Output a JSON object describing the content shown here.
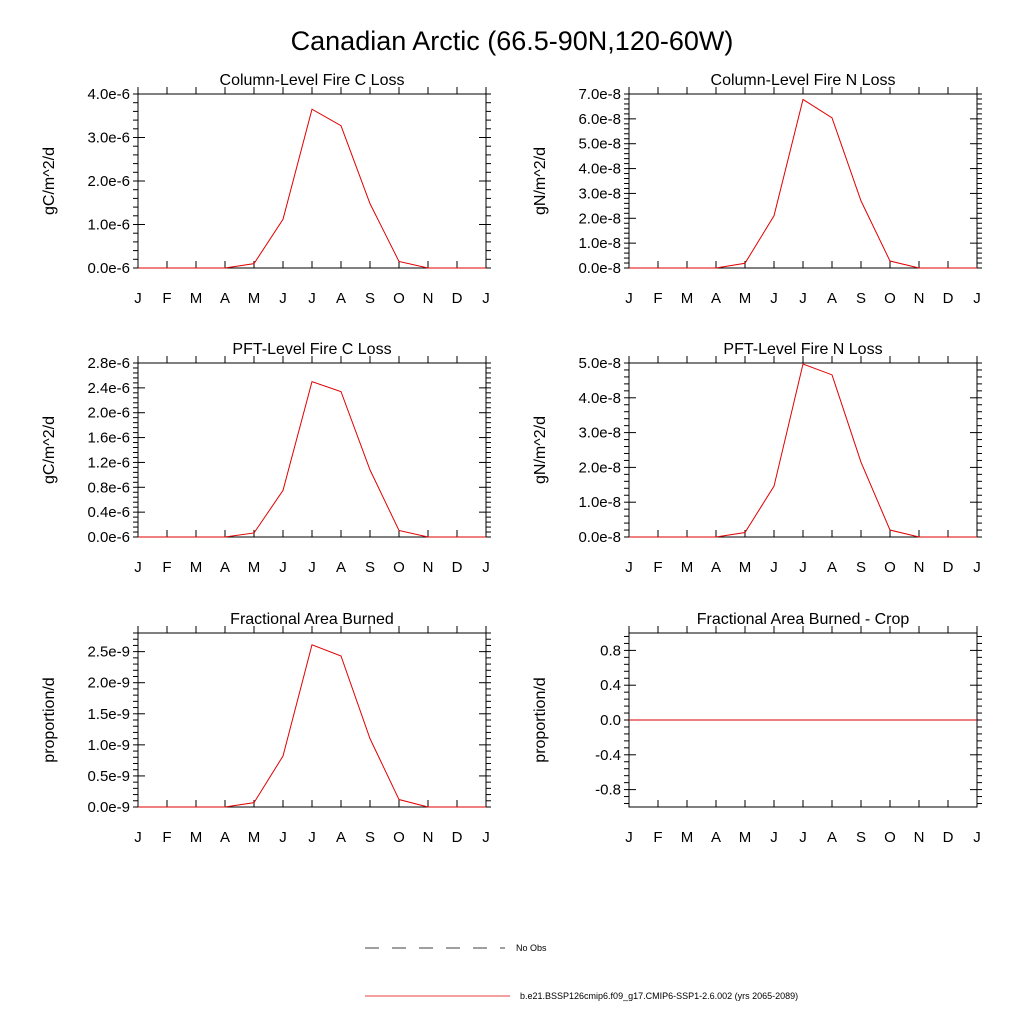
{
  "figure": {
    "title": "Canadian Arctic (66.5-90N,120-60W)"
  },
  "legend": {
    "entries": [
      {
        "label": "No Obs",
        "style": "dashed",
        "color": "#000000"
      },
      {
        "label": "b.e21.BSSP126cmip6.f09_g17.CMIP6-SSP1-2.6.002 (yrs 2065-2089)",
        "style": "solid",
        "color": "#e00000"
      }
    ]
  },
  "chart_data": [
    {
      "type": "line",
      "title": "Column-Level Fire C Loss",
      "ylabel": "gC/m^2/d",
      "categories": [
        "J",
        "F",
        "M",
        "A",
        "M",
        "J",
        "J",
        "A",
        "S",
        "O",
        "N",
        "D",
        "J"
      ],
      "ylim": [
        0,
        4e-06
      ],
      "yticks": [
        0,
        1e-06,
        2e-06,
        3e-06,
        4e-06
      ],
      "yticklabels": [
        "0.0e-6",
        "1.0e-6",
        "2.0e-6",
        "3.0e-6",
        "4.0e-6"
      ],
      "series": [
        {
          "color": "#e00000",
          "values": [
            0,
            0,
            0,
            0,
            1e-07,
            1.12e-06,
            3.65e-06,
            3.27e-06,
            1.48e-06,
            1.5e-07,
            0,
            0,
            0
          ]
        }
      ]
    },
    {
      "type": "line",
      "title": "Column-Level Fire N Loss",
      "ylabel": "gN/m^2/d",
      "categories": [
        "J",
        "F",
        "M",
        "A",
        "M",
        "J",
        "J",
        "A",
        "S",
        "O",
        "N",
        "D",
        "J"
      ],
      "ylim": [
        0,
        7e-08
      ],
      "yticks": [
        0,
        1e-08,
        2e-08,
        3e-08,
        4e-08,
        5e-08,
        6e-08,
        7e-08
      ],
      "yticklabels": [
        "0.0e-8",
        "1.0e-8",
        "2.0e-8",
        "3.0e-8",
        "4.0e-8",
        "5.0e-8",
        "6.0e-8",
        "7.0e-8"
      ],
      "series": [
        {
          "color": "#e00000",
          "values": [
            0,
            0,
            0,
            0,
            1.9e-09,
            2.1e-08,
            6.78e-08,
            6.04e-08,
            2.7e-08,
            2.8e-09,
            0,
            0,
            0
          ]
        }
      ]
    },
    {
      "type": "line",
      "title": "PFT-Level Fire C Loss",
      "ylabel": "gC/m^2/d",
      "categories": [
        "J",
        "F",
        "M",
        "A",
        "M",
        "J",
        "J",
        "A",
        "S",
        "O",
        "N",
        "D",
        "J"
      ],
      "ylim": [
        0,
        2.8e-06
      ],
      "yticks": [
        0,
        4e-07,
        8e-07,
        1.2e-06,
        1.6e-06,
        2e-06,
        2.4e-06,
        2.8e-06
      ],
      "yticklabels": [
        "0.0e-6",
        "0.4e-6",
        "0.8e-6",
        "1.2e-6",
        "1.6e-6",
        "2.0e-6",
        "2.4e-6",
        "2.8e-6"
      ],
      "series": [
        {
          "color": "#e00000",
          "values": [
            0,
            0,
            0,
            0,
            6.5e-08,
            7.5e-07,
            2.5e-06,
            2.34e-06,
            1.08e-06,
            1.05e-07,
            0,
            0,
            0
          ]
        }
      ]
    },
    {
      "type": "line",
      "title": "PFT-Level Fire N Loss",
      "ylabel": "gN/m^2/d",
      "categories": [
        "J",
        "F",
        "M",
        "A",
        "M",
        "J",
        "J",
        "A",
        "S",
        "O",
        "N",
        "D",
        "J"
      ],
      "ylim": [
        0,
        5e-08
      ],
      "yticks": [
        0,
        1e-08,
        2e-08,
        3e-08,
        4e-08,
        5e-08
      ],
      "yticklabels": [
        "0.0e-8",
        "1.0e-8",
        "2.0e-8",
        "3.0e-8",
        "4.0e-8",
        "5.0e-8"
      ],
      "series": [
        {
          "color": "#e00000",
          "values": [
            0,
            0,
            0,
            0,
            1.3e-09,
            1.46e-08,
            4.97e-08,
            4.66e-08,
            2.15e-08,
            2e-09,
            0,
            0,
            0
          ]
        }
      ]
    },
    {
      "type": "line",
      "title": "Fractional Area Burned",
      "ylabel": "proportion/d",
      "categories": [
        "J",
        "F",
        "M",
        "A",
        "M",
        "J",
        "J",
        "A",
        "S",
        "O",
        "N",
        "D",
        "J"
      ],
      "ylim": [
        0,
        2.8e-09
      ],
      "yticks": [
        0,
        5e-10,
        1e-09,
        1.5e-09,
        2e-09,
        2.5e-09
      ],
      "yticklabels": [
        "0.0e-9",
        "0.5e-9",
        "1.0e-9",
        "1.5e-9",
        "2.0e-9",
        "2.5e-9"
      ],
      "series": [
        {
          "color": "#e00000",
          "values": [
            0,
            0,
            0,
            0,
            7e-11,
            8.2e-10,
            2.61e-09,
            2.43e-09,
            1.1e-09,
            1.2e-10,
            0,
            0,
            0
          ]
        }
      ]
    },
    {
      "type": "line",
      "title": "Fractional Area Burned - Crop",
      "ylabel": "proportion/d",
      "categories": [
        "J",
        "F",
        "M",
        "A",
        "M",
        "J",
        "J",
        "A",
        "S",
        "O",
        "N",
        "D",
        "J"
      ],
      "ylim": [
        -1.0,
        1.0
      ],
      "yticks": [
        -0.8,
        -0.4,
        0.0,
        0.4,
        0.8
      ],
      "yticklabels": [
        "-0.8",
        "-0.4",
        "0.0",
        "0.4",
        "0.8"
      ],
      "series": [
        {
          "color": "#e00000",
          "values": [
            0,
            0,
            0,
            0,
            0,
            0,
            0,
            0,
            0,
            0,
            0,
            0,
            0
          ]
        }
      ]
    }
  ]
}
